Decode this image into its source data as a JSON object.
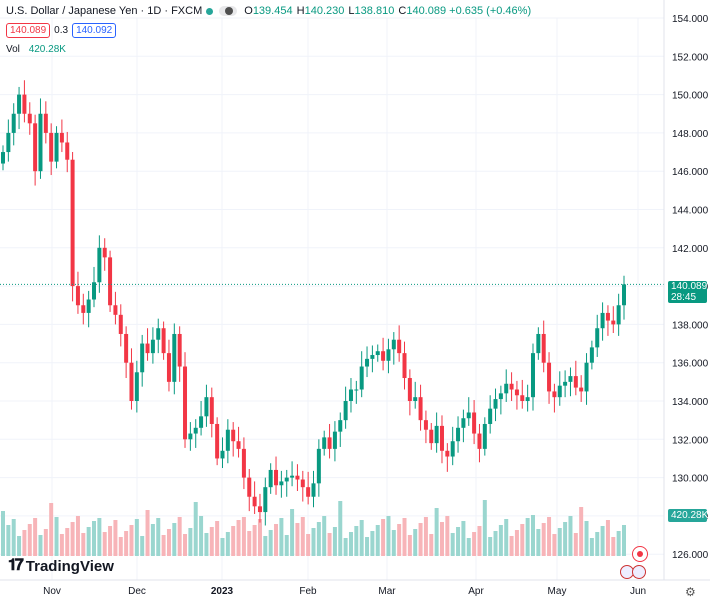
{
  "header": {
    "symbol": "U.S. Dollar / Japanese Yen · 1D · FXCM",
    "open_label": "O",
    "open_value": "139.454",
    "high_label": "H",
    "high_value": "140.230",
    "low_label": "L",
    "low_value": "138.810",
    "close_label": "C",
    "close_value": "140.089",
    "change_value": "+0.635 (+0.46%)"
  },
  "trade": {
    "sell": "140.089",
    "spread": "0.3",
    "buy": "140.092"
  },
  "volume": {
    "label": "Vol",
    "value": "420.28K"
  },
  "price_tag": {
    "price": "140.089",
    "countdown": "28:45"
  },
  "brand": {
    "name": "TradingView"
  },
  "chart_data": {
    "type": "candlestick",
    "x_tick_labels": [
      "Nov",
      "Dec",
      "2023",
      "Feb",
      "Mar",
      "Apr",
      "May",
      "Jun"
    ],
    "y_tick_labels": [
      "154.000",
      "152.000",
      "150.000",
      "148.000",
      "146.000",
      "144.000",
      "142.000",
      "140.000",
      "138.000",
      "136.000",
      "134.000",
      "132.000",
      "130.000",
      "128.000",
      "126.000"
    ],
    "ylim": [
      125,
      155
    ],
    "last_price": 140.089,
    "volume_last": "420.28K",
    "series_closes": [
      147,
      148,
      149,
      150,
      149,
      148.5,
      146,
      149,
      148,
      146.5,
      148,
      147.5,
      146.6,
      140,
      139,
      138.6,
      139.3,
      140.2,
      142,
      141.5,
      139,
      138.5,
      137.5,
      136,
      134,
      135.5,
      137,
      136.5,
      137.2,
      137.8,
      136.5,
      135,
      137.5,
      135.8,
      132,
      132.3,
      132.6,
      133.2,
      134.2,
      132.8,
      131,
      131.4,
      132.5,
      131.9,
      131.5,
      130,
      129,
      128.5,
      128.2,
      129.5,
      130.4,
      129.6,
      129.8,
      130,
      130.1,
      129.9,
      129.5,
      129,
      129.7,
      131.5,
      132.1,
      131.5,
      132.4,
      133,
      134,
      134.6,
      134.6,
      135.8,
      136.2,
      136.4,
      136.6,
      136.1,
      136.7,
      137.2,
      136.5,
      135.2,
      134,
      134.2,
      133,
      132.5,
      131.8,
      132.7,
      131.4,
      131.1,
      131.9,
      132.6,
      133.1,
      133.4,
      132.3,
      131.5,
      132.8,
      133.6,
      134.1,
      134.4,
      134.9,
      134.6,
      134.3,
      134,
      134.2,
      136.5,
      137.5,
      136,
      134.5,
      134.2,
      134.8,
      135,
      135.3,
      134.7,
      134.5,
      136,
      136.8,
      137.8,
      138.6,
      138.2,
      138,
      139,
      140.089
    ]
  }
}
